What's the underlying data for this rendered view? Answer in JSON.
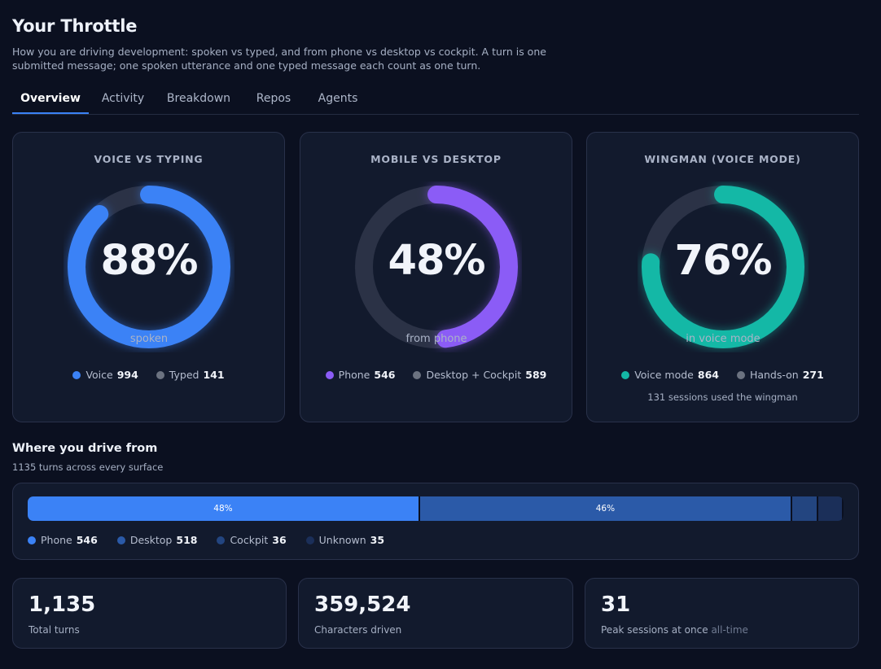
{
  "header": {
    "title": "Your Throttle",
    "subtitle": "How you are driving development: spoken vs typed, and from phone vs desktop vs cockpit. A turn is one submitted message; one spoken utterance and one typed message each count as one turn."
  },
  "tabs": [
    {
      "label": "Overview",
      "active": true
    },
    {
      "label": "Activity",
      "active": false
    },
    {
      "label": "Breakdown",
      "active": false
    },
    {
      "label": "Repos",
      "active": false
    },
    {
      "label": "Agents",
      "active": false
    }
  ],
  "donuts": [
    {
      "title": "VOICE VS TYPING",
      "value": "88%",
      "fraction": 0.88,
      "label": "spoken",
      "color": "#3b82f6",
      "legend": [
        {
          "label": "Voice",
          "value": "994",
          "color": "#3b82f6"
        },
        {
          "label": "Typed",
          "value": "141",
          "color": "#6b7280"
        }
      ]
    },
    {
      "title": "MOBILE VS DESKTOP",
      "value": "48%",
      "fraction": 0.48,
      "label": "from phone",
      "color": "#8b5cf6",
      "legend": [
        {
          "label": "Phone",
          "value": "546",
          "color": "#8b5cf6"
        },
        {
          "label": "Desktop + Cockpit",
          "value": "589",
          "color": "#6b7280"
        }
      ]
    },
    {
      "title": "WINGMAN (VOICE MODE)",
      "value": "76%",
      "fraction": 0.76,
      "label": "in voice mode",
      "color": "#14b8a6",
      "legend": [
        {
          "label": "Voice mode",
          "value": "864",
          "color": "#14b8a6"
        },
        {
          "label": "Hands-on",
          "value": "271",
          "color": "#6b7280"
        }
      ],
      "note": "131 sessions used the wingman"
    }
  ],
  "surfaces": {
    "title": "Where you drive from",
    "subtitle": "1135 turns across every surface",
    "segments": [
      {
        "label": "Phone",
        "value": "546",
        "share": 0.481,
        "percent_label": "48%",
        "color": "#3b82f6"
      },
      {
        "label": "Desktop",
        "value": "518",
        "share": 0.456,
        "percent_label": "46%",
        "color": "#2b5aa8"
      },
      {
        "label": "Cockpit",
        "value": "36",
        "share": 0.032,
        "percent_label": "",
        "color": "#234580"
      },
      {
        "label": "Unknown",
        "value": "35",
        "share": 0.031,
        "percent_label": "",
        "color": "#1b2f59"
      }
    ]
  },
  "stats": [
    {
      "value": "1,135",
      "label": "Total turns",
      "label_suffix": ""
    },
    {
      "value": "359,524",
      "label": "Characters driven",
      "label_suffix": ""
    },
    {
      "value": "31",
      "label": "Peak sessions at once",
      "label_suffix": "all-time"
    }
  ]
}
